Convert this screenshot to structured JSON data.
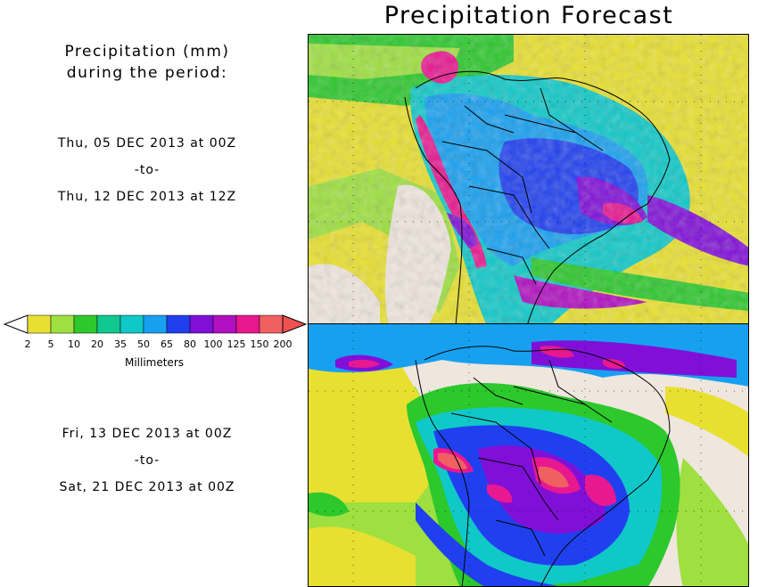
{
  "title": "Precipitation Forecast",
  "subtitle_line1": "Precipitation (mm)",
  "subtitle_line2": "during the period:",
  "period1": {
    "start": "Thu, 05 DEC 2013 at 00Z",
    "sep": "-to-",
    "end": "Thu, 12 DEC 2013 at 12Z"
  },
  "period2": {
    "start": "Fri, 13 DEC 2013 at 00Z",
    "sep": "-to-",
    "end": "Sat, 21 DEC 2013 at 00Z"
  },
  "colorbar": {
    "label": "Millimeters",
    "ticks": [
      "2",
      "5",
      "10",
      "20",
      "35",
      "50",
      "65",
      "80",
      "100",
      "125",
      "150",
      "200"
    ],
    "colors": [
      "#e8e030",
      "#9ee040",
      "#2cc82c",
      "#10c890",
      "#10c8c8",
      "#18a0f0",
      "#2040f0",
      "#8010d8",
      "#b010c0",
      "#e81890",
      "#f06060"
    ],
    "under_color": "#ffffff",
    "over_color": "#f05050"
  },
  "map_colors": {
    "land": "#efe6de",
    "outline": "#000000"
  }
}
